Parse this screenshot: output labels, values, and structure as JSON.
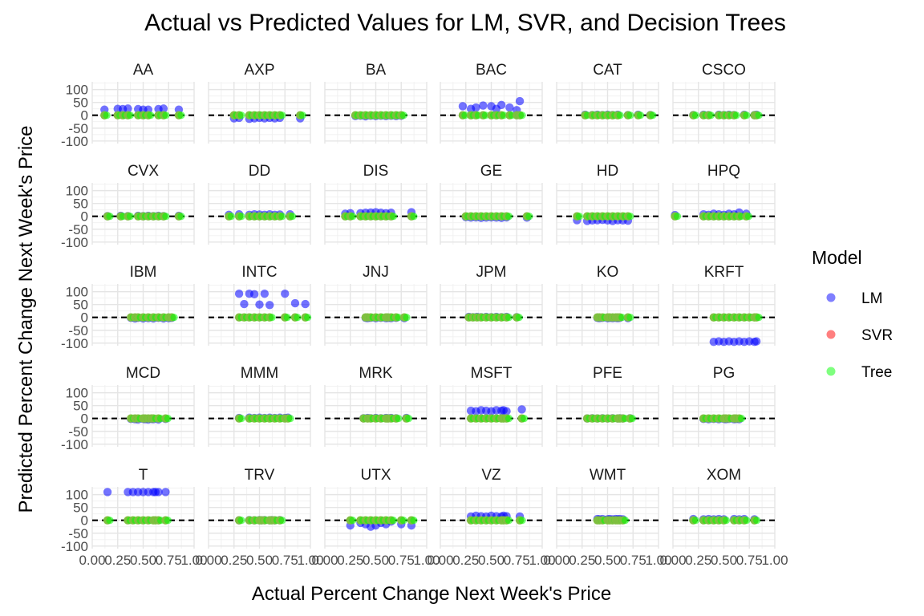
{
  "chart_data": {
    "type": "scatter",
    "title": "Actual vs Predicted Values for LM, SVR, and Decision Trees",
    "xlabel": "Actual Percent Change Next Week's Price",
    "ylabel": "Predicted Percent Change Next Week's Price",
    "xlim": [
      0,
      1
    ],
    "ylim": [
      -110,
      130
    ],
    "x_ticks": [
      0,
      0.25,
      0.5,
      0.75,
      1
    ],
    "x_tick_labels": [
      "0.00",
      "0.25",
      "0.50",
      "0.75",
      "1.00"
    ],
    "y_ticks": [
      100,
      50,
      0,
      -50,
      -100
    ],
    "y_tick_labels": [
      "100",
      "50",
      "0",
      "-50",
      "-100"
    ],
    "reference_line": {
      "y": 0,
      "style": "dashed"
    },
    "grid": true,
    "legend": {
      "title": "Model",
      "placement": "right",
      "entries": [
        {
          "name": "LM",
          "color": "#0000ff"
        },
        {
          "name": "SVR",
          "color": "#ff0000"
        },
        {
          "name": "Tree",
          "color": "#00ff00"
        }
      ]
    },
    "panels": [
      {
        "name": "AA",
        "x": [
          0.12,
          0.25,
          0.3,
          0.35,
          0.45,
          0.5,
          0.55,
          0.65,
          0.7,
          0.85
        ],
        "lm": [
          22,
          25,
          24,
          26,
          24,
          22,
          22,
          24,
          26,
          22
        ],
        "tree": [
          0,
          0,
          0,
          0,
          0,
          0,
          0,
          0,
          0,
          0
        ]
      },
      {
        "name": "AXP",
        "x": [
          0.25,
          0.3,
          0.4,
          0.45,
          0.5,
          0.55,
          0.6,
          0.65,
          0.7,
          0.9
        ],
        "lm": [
          -12,
          -10,
          -14,
          -12,
          -10,
          -12,
          -10,
          -12,
          -10,
          -12
        ],
        "tree": [
          0,
          0,
          0,
          0,
          0,
          0,
          0,
          0,
          0,
          0
        ]
      },
      {
        "name": "BA",
        "x": [
          0.3,
          0.35,
          0.4,
          0.45,
          0.5,
          0.55,
          0.6,
          0.65,
          0.7,
          0.75
        ],
        "lm": [
          -3,
          -2,
          -4,
          -2,
          -3,
          -2,
          -3,
          -2,
          -3,
          -2
        ],
        "tree": [
          0,
          0,
          0,
          0,
          0,
          0,
          0,
          0,
          0,
          0
        ]
      },
      {
        "name": "BAC",
        "x": [
          0.22,
          0.3,
          0.35,
          0.42,
          0.5,
          0.55,
          0.6,
          0.68,
          0.75,
          0.78
        ],
        "lm": [
          35,
          25,
          30,
          38,
          35,
          25,
          40,
          30,
          20,
          55
        ],
        "tree": [
          0,
          0,
          0,
          0,
          0,
          0,
          0,
          0,
          0,
          0
        ]
      },
      {
        "name": "CAT",
        "x": [
          0.28,
          0.35,
          0.4,
          0.45,
          0.5,
          0.55,
          0.6,
          0.7,
          0.8,
          0.92
        ],
        "lm": [
          2,
          1,
          2,
          1,
          2,
          1,
          2,
          1,
          2,
          1
        ],
        "tree": [
          0,
          0,
          0,
          0,
          0,
          0,
          0,
          0,
          0,
          0
        ]
      },
      {
        "name": "CSCO",
        "x": [
          0.2,
          0.3,
          0.35,
          0.45,
          0.5,
          0.55,
          0.6,
          0.7,
          0.8,
          0.82
        ],
        "lm": [
          1,
          2,
          1,
          2,
          1,
          2,
          1,
          2,
          1,
          2
        ],
        "tree": [
          0,
          0,
          0,
          0,
          0,
          0,
          0,
          0,
          0,
          0
        ]
      },
      {
        "name": "CVX",
        "x": [
          0.15,
          0.28,
          0.35,
          0.45,
          0.5,
          0.55,
          0.6,
          0.65,
          0.7,
          0.85
        ],
        "lm": [
          1,
          2,
          1,
          2,
          1,
          2,
          1,
          2,
          1,
          2
        ],
        "tree": [
          0,
          0,
          0,
          0,
          0,
          0,
          0,
          0,
          0,
          0
        ]
      },
      {
        "name": "DD",
        "x": [
          0.2,
          0.3,
          0.4,
          0.45,
          0.5,
          0.55,
          0.6,
          0.65,
          0.7,
          0.8
        ],
        "lm": [
          6,
          8,
          6,
          8,
          7,
          6,
          8,
          6,
          7,
          8
        ],
        "tree": [
          0,
          0,
          0,
          0,
          0,
          0,
          0,
          0,
          0,
          0
        ]
      },
      {
        "name": "DIS",
        "x": [
          0.2,
          0.25,
          0.35,
          0.4,
          0.45,
          0.5,
          0.55,
          0.6,
          0.65,
          0.85
        ],
        "lm": [
          10,
          12,
          12,
          14,
          15,
          16,
          14,
          12,
          14,
          16
        ],
        "tree": [
          0,
          0,
          0,
          0,
          0,
          0,
          0,
          0,
          0,
          0
        ]
      },
      {
        "name": "GE",
        "x": [
          0.25,
          0.3,
          0.35,
          0.4,
          0.45,
          0.5,
          0.55,
          0.6,
          0.65,
          0.85
        ],
        "lm": [
          -3,
          -5,
          -4,
          -6,
          -5,
          -4,
          -5,
          -6,
          -4,
          -5
        ],
        "tree": [
          0,
          0,
          0,
          0,
          0,
          0,
          0,
          0,
          0,
          0
        ]
      },
      {
        "name": "HD",
        "x": [
          0.2,
          0.3,
          0.35,
          0.4,
          0.45,
          0.5,
          0.55,
          0.6,
          0.65,
          0.7
        ],
        "lm": [
          -15,
          -18,
          -16,
          -15,
          -14,
          -16,
          -18,
          -15,
          -16,
          -17
        ],
        "tree": [
          0,
          0,
          0,
          0,
          0,
          0,
          0,
          0,
          0,
          0
        ]
      },
      {
        "name": "HPQ",
        "x": [
          0.02,
          0.3,
          0.35,
          0.4,
          0.45,
          0.5,
          0.55,
          0.6,
          0.65,
          0.72
        ],
        "lm": [
          5,
          8,
          6,
          10,
          8,
          6,
          10,
          8,
          15,
          10
        ],
        "tree": [
          0,
          0,
          0,
          0,
          0,
          0,
          0,
          0,
          0,
          0
        ]
      },
      {
        "name": "IBM",
        "x": [
          0.38,
          0.42,
          0.45,
          0.5,
          0.55,
          0.6,
          0.65,
          0.7,
          0.75,
          0.78
        ],
        "lm": [
          -2,
          -4,
          -2,
          -4,
          -3,
          -4,
          -2,
          -4,
          -3,
          -2
        ],
        "tree": [
          0,
          0,
          0,
          0,
          0,
          0,
          0,
          0,
          0,
          0
        ]
      },
      {
        "name": "INTC",
        "x": [
          0.3,
          0.35,
          0.4,
          0.45,
          0.5,
          0.55,
          0.6,
          0.75,
          0.85,
          0.95
        ],
        "lm": [
          92,
          52,
          92,
          90,
          50,
          92,
          48,
          92,
          55,
          52
        ],
        "tree": [
          0,
          0,
          0,
          0,
          0,
          0,
          0,
          0,
          0,
          0
        ]
      },
      {
        "name": "JNJ",
        "x": [
          0.4,
          0.42,
          0.45,
          0.5,
          0.55,
          0.6,
          0.62,
          0.65,
          0.7,
          0.78
        ],
        "lm": [
          -2,
          -3,
          -2,
          -3,
          -2,
          -3,
          -2,
          -3,
          -2,
          -3
        ],
        "tree": [
          0,
          0,
          0,
          0,
          0,
          0,
          0,
          0,
          0,
          0
        ]
      },
      {
        "name": "JPM",
        "x": [
          0.28,
          0.32,
          0.36,
          0.4,
          0.45,
          0.5,
          0.55,
          0.6,
          0.65,
          0.75
        ],
        "lm": [
          2,
          1,
          2,
          1,
          2,
          1,
          2,
          1,
          2,
          1
        ],
        "tree": [
          0,
          0,
          0,
          0,
          0,
          0,
          0,
          0,
          0,
          0
        ]
      },
      {
        "name": "KO",
        "x": [
          0.4,
          0.42,
          0.45,
          0.5,
          0.52,
          0.55,
          0.58,
          0.6,
          0.62,
          0.7
        ],
        "lm": [
          -2,
          -3,
          -2,
          -3,
          -2,
          -3,
          -2,
          -3,
          -2,
          -3
        ],
        "tree": [
          0,
          0,
          0,
          0,
          0,
          0,
          0,
          0,
          0,
          0
        ]
      },
      {
        "name": "KRFT",
        "x": [
          0.4,
          0.45,
          0.5,
          0.55,
          0.6,
          0.65,
          0.7,
          0.75,
          0.8,
          0.82
        ],
        "lm": [
          -95,
          -93,
          -95,
          -93,
          -95,
          -93,
          -95,
          -93,
          -95,
          -93
        ],
        "tree": [
          0,
          0,
          0,
          0,
          0,
          0,
          0,
          0,
          0,
          0
        ]
      },
      {
        "name": "MCD",
        "x": [
          0.38,
          0.42,
          0.45,
          0.5,
          0.52,
          0.55,
          0.58,
          0.6,
          0.65,
          0.72
        ],
        "lm": [
          -2,
          -3,
          -4,
          -2,
          -3,
          -4,
          -2,
          -3,
          -4,
          -2
        ],
        "tree": [
          0,
          0,
          0,
          0,
          0,
          0,
          0,
          0,
          0,
          0
        ]
      },
      {
        "name": "MMM",
        "x": [
          0.3,
          0.4,
          0.45,
          0.5,
          0.55,
          0.6,
          0.65,
          0.7,
          0.75,
          0.78
        ],
        "lm": [
          2,
          3,
          2,
          3,
          2,
          3,
          2,
          3,
          2,
          3
        ],
        "tree": [
          0,
          0,
          0,
          0,
          0,
          0,
          0,
          0,
          0,
          0
        ]
      },
      {
        "name": "MRK",
        "x": [
          0.38,
          0.42,
          0.45,
          0.5,
          0.55,
          0.6,
          0.62,
          0.65,
          0.7,
          0.8
        ],
        "lm": [
          1,
          2,
          1,
          2,
          1,
          2,
          1,
          2,
          1,
          2
        ],
        "tree": [
          0,
          0,
          0,
          0,
          0,
          0,
          0,
          0,
          0,
          0
        ]
      },
      {
        "name": "MSFT",
        "x": [
          0.3,
          0.35,
          0.4,
          0.45,
          0.5,
          0.55,
          0.6,
          0.62,
          0.65,
          0.8
        ],
        "lm": [
          30,
          28,
          32,
          30,
          28,
          32,
          30,
          32,
          28,
          35
        ],
        "tree": [
          0,
          0,
          0,
          0,
          0,
          0,
          0,
          0,
          0,
          0
        ]
      },
      {
        "name": "PFE",
        "x": [
          0.3,
          0.35,
          0.4,
          0.45,
          0.5,
          0.55,
          0.6,
          0.62,
          0.65,
          0.72
        ],
        "lm": [
          0,
          1,
          0,
          1,
          0,
          1,
          0,
          1,
          0,
          1
        ],
        "tree": [
          0,
          0,
          0,
          0,
          0,
          0,
          0,
          0,
          0,
          0
        ]
      },
      {
        "name": "PG",
        "x": [
          0.3,
          0.35,
          0.4,
          0.45,
          0.5,
          0.52,
          0.55,
          0.6,
          0.62,
          0.65
        ],
        "lm": [
          -2,
          -3,
          -2,
          -3,
          -2,
          -3,
          -2,
          -3,
          -2,
          -3
        ],
        "tree": [
          0,
          0,
          0,
          0,
          0,
          0,
          0,
          0,
          0,
          0
        ]
      },
      {
        "name": "T",
        "x": [
          0.15,
          0.35,
          0.4,
          0.45,
          0.5,
          0.55,
          0.6,
          0.62,
          0.65,
          0.72
        ],
        "lm": [
          110,
          110,
          110,
          110,
          110,
          110,
          110,
          110,
          110,
          110
        ],
        "tree": [
          0,
          0,
          0,
          0,
          0,
          0,
          0,
          0,
          0,
          0
        ]
      },
      {
        "name": "TRV",
        "x": [
          0.3,
          0.4,
          0.45,
          0.5,
          0.52,
          0.55,
          0.6,
          0.62,
          0.65,
          0.7
        ],
        "lm": [
          0,
          1,
          0,
          1,
          0,
          1,
          0,
          1,
          0,
          1
        ],
        "tree": [
          0,
          0,
          0,
          0,
          0,
          0,
          0,
          0,
          0,
          0
        ]
      },
      {
        "name": "UTX",
        "x": [
          0.25,
          0.35,
          0.4,
          0.45,
          0.5,
          0.55,
          0.6,
          0.65,
          0.75,
          0.85
        ],
        "lm": [
          -20,
          -10,
          -15,
          -25,
          -20,
          -10,
          -15,
          -5,
          -15,
          -20
        ],
        "tree": [
          0,
          0,
          0,
          0,
          0,
          0,
          0,
          0,
          0,
          0
        ]
      },
      {
        "name": "VZ",
        "x": [
          0.3,
          0.35,
          0.4,
          0.45,
          0.5,
          0.55,
          0.6,
          0.62,
          0.65,
          0.78
        ],
        "lm": [
          15,
          18,
          16,
          15,
          18,
          16,
          15,
          18,
          16,
          15
        ],
        "tree": [
          0,
          0,
          0,
          0,
          0,
          0,
          0,
          0,
          0,
          0
        ]
      },
      {
        "name": "WMT",
        "x": [
          0.4,
          0.42,
          0.45,
          0.5,
          0.52,
          0.55,
          0.58,
          0.6,
          0.62,
          0.65
        ],
        "lm": [
          5,
          4,
          5,
          4,
          5,
          4,
          5,
          4,
          5,
          4
        ],
        "tree": [
          0,
          0,
          0,
          0,
          0,
          0,
          0,
          0,
          0,
          0
        ]
      },
      {
        "name": "XOM",
        "x": [
          0.2,
          0.3,
          0.35,
          0.4,
          0.45,
          0.5,
          0.6,
          0.65,
          0.7,
          0.8
        ],
        "lm": [
          5,
          4,
          5,
          4,
          5,
          4,
          5,
          4,
          5,
          4
        ],
        "tree": [
          0,
          0,
          0,
          0,
          0,
          0,
          0,
          0,
          0,
          0
        ]
      }
    ]
  }
}
